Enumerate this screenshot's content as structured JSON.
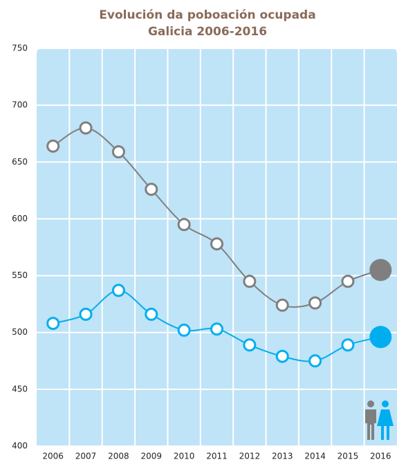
{
  "chart_data": {
    "type": "line",
    "title": "Evolución da poboación ocupada",
    "subtitle": "Galicia 2006-2016",
    "categories": [
      "2006",
      "2007",
      "2008",
      "2009",
      "2010",
      "2011",
      "2012",
      "2013",
      "2014",
      "2015",
      "2016"
    ],
    "series": [
      {
        "color": "#7f7f7f",
        "values": [
          664,
          680,
          659,
          626,
          595,
          578,
          545,
          524,
          526,
          545,
          555
        ]
      },
      {
        "color": "#00aeef",
        "values": [
          508,
          516,
          537,
          516,
          502,
          503,
          489,
          479,
          475,
          489,
          496
        ]
      }
    ],
    "ylim": [
      400,
      750
    ],
    "yticks": [
      400,
      450,
      500,
      550,
      600,
      650,
      700,
      750
    ],
    "grid": true
  }
}
